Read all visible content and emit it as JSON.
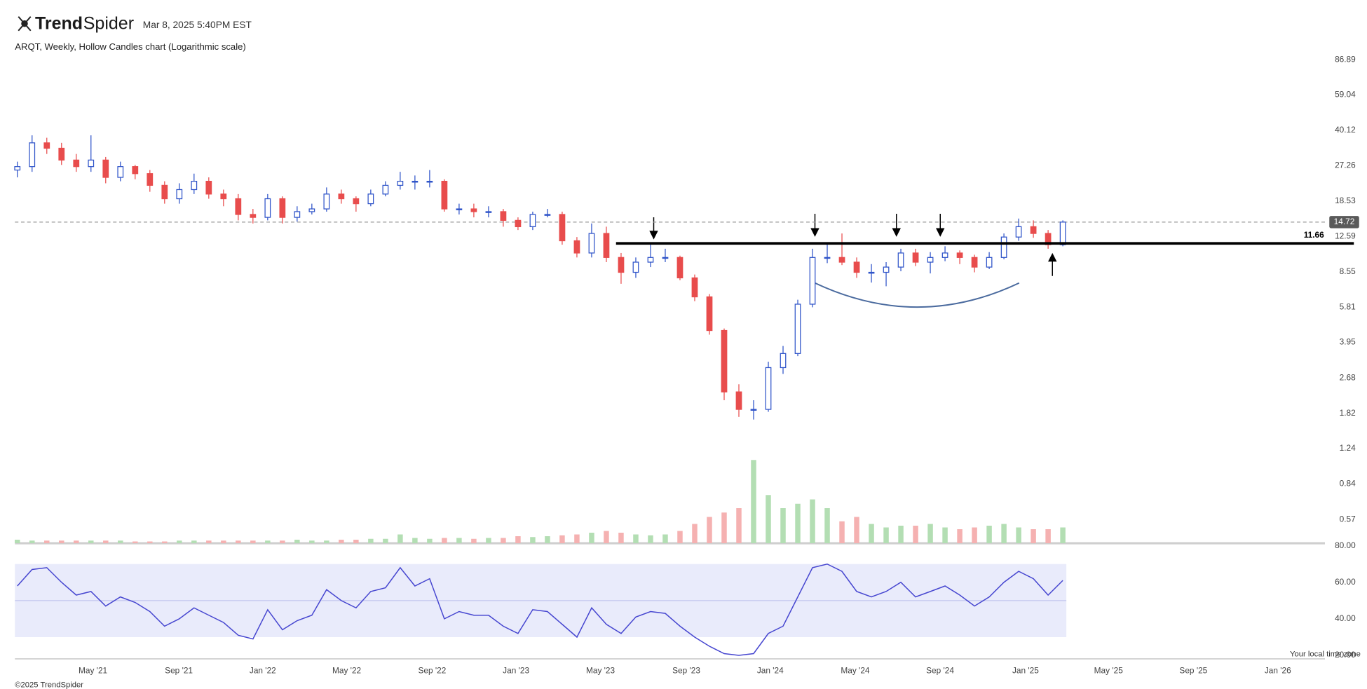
{
  "header": {
    "logo_bold": "Trend",
    "logo_light": "Spider",
    "timestamp": "Mar 8, 2025 5:40PM EST",
    "subtitle": "ARQT, Weekly, Hollow Candles chart (Logarithmic scale)"
  },
  "chart_data": {
    "type": "candlestick",
    "log_scale": true,
    "x": [
      0,
      3,
      6,
      9,
      12,
      15,
      18,
      21,
      24,
      27,
      30,
      33,
      36,
      39,
      42,
      45,
      48,
      51,
      54,
      57,
      60,
      63,
      66,
      69,
      72,
      75,
      78,
      81,
      84,
      87,
      90,
      93,
      96,
      99,
      102,
      105,
      108,
      111,
      114,
      117,
      120,
      123,
      126,
      129,
      132,
      135,
      138,
      141,
      144,
      147,
      150,
      153,
      156,
      159,
      162,
      165,
      168,
      171,
      174,
      177,
      180,
      183,
      186,
      189,
      192,
      195,
      198,
      201,
      204,
      207,
      210,
      213
    ],
    "xlim": [
      -0.5,
      266.4
    ],
    "xticks": [
      {
        "value": 15.4,
        "label": "May '21"
      },
      {
        "value": 32.9,
        "label": "Sep '21"
      },
      {
        "value": 50.0,
        "label": "Jan '22"
      },
      {
        "value": 67.1,
        "label": "May '22"
      },
      {
        "value": 84.5,
        "label": "Sep '22"
      },
      {
        "value": 101.6,
        "label": "Jan '23"
      },
      {
        "value": 118.8,
        "label": "May '23"
      },
      {
        "value": 136.3,
        "label": "Sep '23"
      },
      {
        "value": 153.4,
        "label": "Jan '24"
      },
      {
        "value": 170.7,
        "label": "May '24"
      },
      {
        "value": 188.0,
        "label": "Sep '24"
      },
      {
        "value": 205.4,
        "label": "Jan '25"
      },
      {
        "value": 222.3,
        "label": "May '25"
      },
      {
        "value": 239.6,
        "label": "Sep '25"
      },
      {
        "value": 256.8,
        "label": "Jan '26"
      }
    ],
    "open": [
      26,
      27,
      35,
      33,
      29,
      27,
      29,
      24,
      27,
      25,
      22,
      19,
      21,
      23,
      20,
      19,
      16,
      15.5,
      19,
      15.5,
      16.5,
      17,
      20,
      19,
      18,
      20,
      22,
      23,
      23,
      23,
      17,
      17,
      16.5,
      16.5,
      15,
      14,
      16,
      16,
      12,
      10.5,
      13,
      10,
      8.5,
      9.5,
      10,
      10,
      8,
      6.5,
      4.5,
      2.3,
      1.9,
      1.9,
      3,
      3.5,
      6,
      10,
      10,
      9.5,
      8.5,
      8.5,
      9,
      10.5,
      9.5,
      10,
      10.5,
      10,
      9,
      10,
      12.5,
      14,
      13,
      11.5
    ],
    "high": [
      28.5,
      38,
      37,
      35,
      31,
      38,
      30,
      28.5,
      27.5,
      26,
      23,
      22.5,
      25,
      24,
      21,
      20,
      17,
      20,
      19.5,
      17.5,
      18,
      21.5,
      21,
      19.5,
      21,
      23,
      25.5,
      24.5,
      26,
      23.5,
      18,
      18,
      17.5,
      17,
      15.5,
      16.5,
      17,
      16.5,
      12.5,
      14.5,
      14,
      10.5,
      10,
      11.5,
      11,
      10.2,
      8.3,
      6.7,
      4.6,
      2.5,
      2.1,
      3.2,
      3.8,
      6.3,
      11,
      11.5,
      13,
      10,
      9.3,
      9.5,
      11,
      11,
      10.6,
      11.3,
      10.8,
      10.3,
      10.6,
      13,
      15.3,
      15,
      13.5,
      15
    ],
    "low": [
      24,
      25.5,
      31,
      27.5,
      25.5,
      25.5,
      22.5,
      23,
      23.5,
      20.5,
      18,
      18,
      20,
      19,
      17.5,
      15,
      14.5,
      15,
      14.5,
      14.8,
      16,
      16.5,
      18,
      16.5,
      17.5,
      19.5,
      21,
      21,
      21.5,
      16.5,
      16,
      15.5,
      15.5,
      14,
      13.5,
      13.5,
      15.5,
      11.5,
      10,
      10,
      9.5,
      7.5,
      8,
      9,
      9.5,
      7.8,
      6.2,
      4.3,
      2.1,
      1.75,
      1.7,
      1.85,
      2.8,
      3.4,
      5.8,
      9.4,
      9.2,
      8,
      7.6,
      7.3,
      8.6,
      9.1,
      8.4,
      9.6,
      9.3,
      8.5,
      8.8,
      9.8,
      12,
      12.4,
      11,
      11.3
    ],
    "close": [
      27,
      35,
      33,
      29,
      27,
      29,
      24,
      27,
      25,
      22,
      19,
      21,
      23,
      20,
      19,
      16,
      15.5,
      19,
      15.5,
      16.5,
      17,
      20,
      19,
      18,
      20,
      22,
      23,
      23,
      23,
      17,
      17,
      16.5,
      16.5,
      15,
      14,
      16,
      16,
      12,
      10.5,
      13,
      10,
      8.5,
      9.5,
      10,
      10,
      8,
      6.5,
      4.5,
      2.3,
      1.9,
      1.9,
      3,
      3.5,
      6,
      10,
      10,
      9.5,
      8.5,
      8.5,
      9,
      10.5,
      9.5,
      10,
      10.5,
      10,
      9,
      10,
      12.5,
      14,
      13,
      11.5,
      14.72
    ],
    "ylim": [
      0.44,
      93.9
    ],
    "yticks": [
      86.89,
      59.04,
      40.12,
      27.26,
      18.53,
      12.59,
      8.55,
      5.81,
      3.95,
      2.68,
      1.82,
      1.24,
      0.84,
      0.57
    ],
    "up_color": "#2f54c9",
    "down_color": "#e84c4c",
    "last_price": 14.72,
    "resistance": 11.66,
    "volume": {
      "values": [
        4,
        3,
        3,
        3,
        3,
        3,
        3,
        3,
        2,
        2,
        2,
        3,
        3,
        3,
        3,
        3,
        3,
        3,
        3,
        4,
        3,
        3,
        4,
        4,
        5,
        5,
        10,
        6,
        5,
        6,
        6,
        5,
        6,
        6,
        8,
        7,
        8,
        9,
        10,
        12,
        14,
        12,
        10,
        9,
        10,
        14,
        22,
        30,
        35,
        40,
        95,
        55,
        40,
        45,
        50,
        40,
        25,
        30,
        22,
        18,
        20,
        20,
        22,
        18,
        16,
        18,
        20,
        22,
        18,
        16,
        16,
        18
      ],
      "ylim": [
        0,
        100
      ],
      "up_color": "#b3deb3",
      "down_color": "#f5b1b1"
    },
    "rsi": {
      "values": [
        58,
        67,
        68,
        60,
        53,
        55,
        47,
        52,
        49,
        44,
        36,
        40,
        46,
        42,
        38,
        31,
        29,
        45,
        34,
        39,
        42,
        56,
        50,
        46,
        55,
        57,
        68,
        58,
        62,
        40,
        44,
        42,
        42,
        36,
        32,
        45,
        44,
        37,
        30,
        46,
        37,
        32,
        41,
        44,
        43,
        36,
        30,
        25,
        21,
        20,
        21,
        32,
        36,
        52,
        68,
        70,
        66,
        55,
        52,
        55,
        60,
        52,
        55,
        58,
        53,
        47,
        52,
        60,
        66,
        62,
        53,
        61
      ],
      "ylim": [
        18.1,
        81.4
      ],
      "yticks": [
        {
          "value": 80,
          "label": "80.00"
        },
        {
          "value": 60,
          "label": "60.00"
        },
        {
          "value": 40,
          "label": "40.00"
        },
        {
          "value": 20,
          "label": "20.00"
        }
      ],
      "bands": [
        30,
        70
      ],
      "mid": 50,
      "color": "#4646d0",
      "band_color": "#e9ebfb"
    }
  },
  "footer": {
    "copyright": "©2025 TrendSpider",
    "timezone": "Your local time zone"
  }
}
